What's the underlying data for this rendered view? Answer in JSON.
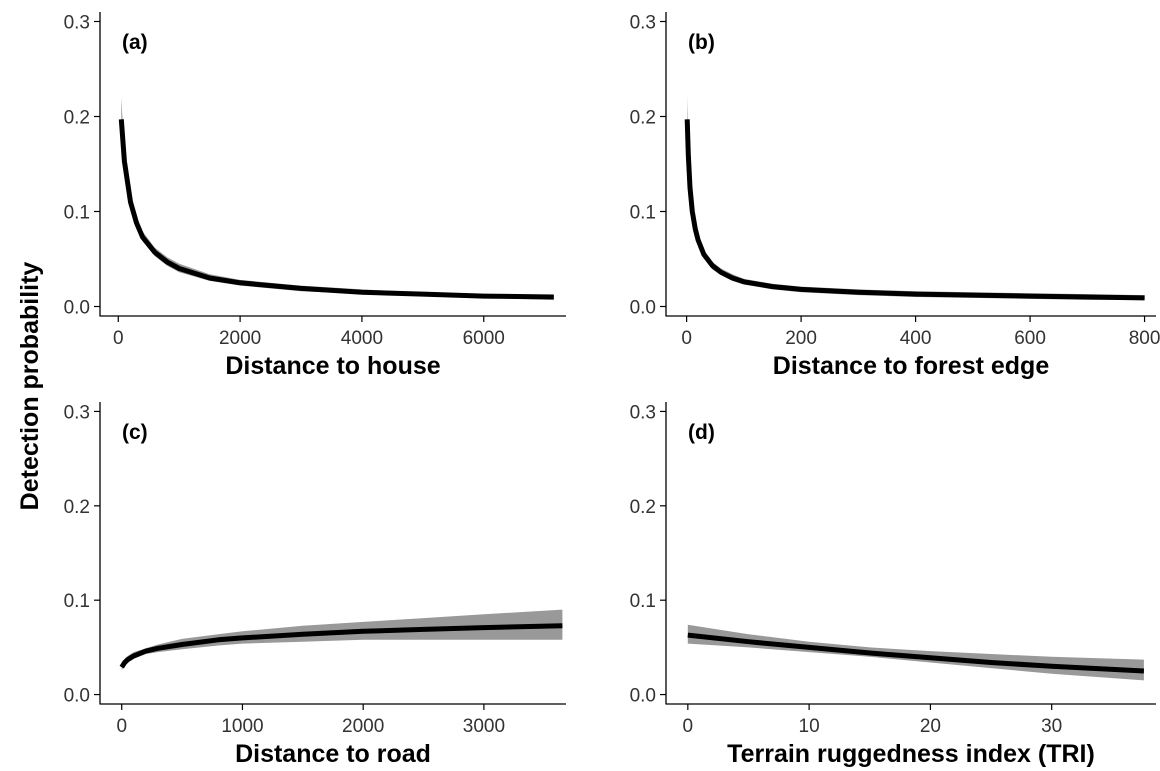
{
  "figure": {
    "ylabel": "Detection probability"
  },
  "style": {
    "line_color": "#000000",
    "ribbon_color": "#999999",
    "axis_color": "#000000"
  },
  "chart_data": [
    {
      "type": "line",
      "panel_label": "(a)",
      "xlabel": "Distance to house",
      "ylabel": "Detection probability",
      "xlim": [
        -300,
        7350
      ],
      "ylim": [
        -0.01,
        0.31
      ],
      "xticks": [
        0,
        2000,
        4000,
        6000
      ],
      "xtick_labels": [
        "0",
        "2000",
        "4000",
        "6000"
      ],
      "yticks": [
        0.0,
        0.1,
        0.2,
        0.3
      ],
      "ytick_labels": [
        "0.0",
        "0.1",
        "0.2",
        "0.3"
      ],
      "grid": false,
      "series": [
        {
          "x": [
            50,
            100,
            200,
            300,
            400,
            600,
            800,
            1000,
            1500,
            2000,
            3000,
            4000,
            5000,
            6000,
            7150
          ],
          "y": [
            0.197,
            0.153,
            0.11,
            0.088,
            0.073,
            0.057,
            0.047,
            0.04,
            0.03,
            0.025,
            0.019,
            0.015,
            0.013,
            0.011,
            0.01
          ],
          "lower": [
            0.18,
            0.143,
            0.104,
            0.083,
            0.069,
            0.053,
            0.043,
            0.036,
            0.027,
            0.022,
            0.016,
            0.013,
            0.011,
            0.009,
            0.007
          ],
          "upper": [
            0.22,
            0.163,
            0.117,
            0.094,
            0.079,
            0.062,
            0.052,
            0.045,
            0.034,
            0.028,
            0.022,
            0.018,
            0.015,
            0.013,
            0.012
          ]
        }
      ]
    },
    {
      "type": "line",
      "panel_label": "(b)",
      "xlabel": "Distance to forest edge",
      "ylabel": "Detection probability",
      "xlim": [
        -36,
        820
      ],
      "ylim": [
        -0.01,
        0.31
      ],
      "xticks": [
        0,
        200,
        400,
        600,
        800
      ],
      "xtick_labels": [
        "0",
        "200",
        "400",
        "600",
        "800"
      ],
      "yticks": [
        0.0,
        0.1,
        0.2,
        0.3
      ],
      "ytick_labels": [
        "0.0",
        "0.1",
        "0.2",
        "0.3"
      ],
      "grid": false,
      "series": [
        {
          "x": [
            1,
            3,
            6,
            10,
            15,
            20,
            30,
            45,
            60,
            80,
            100,
            150,
            200,
            300,
            400,
            500,
            600,
            700,
            800
          ],
          "y": [
            0.197,
            0.16,
            0.125,
            0.1,
            0.082,
            0.07,
            0.055,
            0.043,
            0.036,
            0.03,
            0.026,
            0.021,
            0.018,
            0.015,
            0.013,
            0.012,
            0.011,
            0.01,
            0.009
          ],
          "lower": [
            0.18,
            0.149,
            0.117,
            0.094,
            0.077,
            0.065,
            0.051,
            0.039,
            0.033,
            0.027,
            0.023,
            0.018,
            0.015,
            0.012,
            0.01,
            0.009,
            0.008,
            0.007,
            0.007
          ],
          "upper": [
            0.222,
            0.172,
            0.133,
            0.106,
            0.087,
            0.075,
            0.059,
            0.047,
            0.04,
            0.034,
            0.029,
            0.024,
            0.021,
            0.018,
            0.016,
            0.015,
            0.014,
            0.013,
            0.012
          ]
        }
      ]
    },
    {
      "type": "line",
      "panel_label": "(c)",
      "xlabel": "Distance to road",
      "ylabel": "Detection probability",
      "xlim": [
        -180,
        3680
      ],
      "ylim": [
        -0.01,
        0.31
      ],
      "xticks": [
        0,
        1000,
        2000,
        3000
      ],
      "xtick_labels": [
        "0",
        "1000",
        "2000",
        "3000"
      ],
      "yticks": [
        0.0,
        0.1,
        0.2,
        0.3
      ],
      "ytick_labels": [
        "0.0",
        "0.1",
        "0.2",
        "0.3"
      ],
      "grid": false,
      "series": [
        {
          "x": [
            0,
            25,
            50,
            100,
            200,
            300,
            500,
            800,
            1000,
            1500,
            2000,
            2500,
            3000,
            3650
          ],
          "y": [
            0.029,
            0.034,
            0.037,
            0.041,
            0.046,
            0.049,
            0.053,
            0.058,
            0.06,
            0.064,
            0.067,
            0.069,
            0.071,
            0.073
          ],
          "lower": [
            0.026,
            0.031,
            0.034,
            0.038,
            0.043,
            0.045,
            0.048,
            0.052,
            0.054,
            0.056,
            0.058,
            0.058,
            0.058,
            0.058
          ],
          "upper": [
            0.032,
            0.038,
            0.041,
            0.045,
            0.049,
            0.053,
            0.059,
            0.064,
            0.067,
            0.073,
            0.077,
            0.081,
            0.085,
            0.09
          ]
        }
      ]
    },
    {
      "type": "line",
      "panel_label": "(d)",
      "xlabel": "Terrain ruggedness index (TRI)",
      "ylabel": "Detection probability",
      "xlim": [
        -1.8,
        38.6
      ],
      "ylim": [
        -0.01,
        0.31
      ],
      "xticks": [
        0,
        10,
        20,
        30
      ],
      "xtick_labels": [
        "0",
        "10",
        "20",
        "30"
      ],
      "yticks": [
        0.0,
        0.1,
        0.2,
        0.3
      ],
      "ytick_labels": [
        "0.0",
        "0.1",
        "0.2",
        "0.3"
      ],
      "grid": false,
      "series": [
        {
          "x": [
            0,
            5,
            10,
            15,
            20,
            25,
            30,
            37.6
          ],
          "y": [
            0.063,
            0.056,
            0.05,
            0.044,
            0.039,
            0.034,
            0.03,
            0.025
          ],
          "lower": [
            0.054,
            0.05,
            0.045,
            0.04,
            0.034,
            0.028,
            0.022,
            0.015
          ],
          "upper": [
            0.074,
            0.064,
            0.056,
            0.05,
            0.046,
            0.043,
            0.04,
            0.037
          ]
        }
      ]
    }
  ]
}
